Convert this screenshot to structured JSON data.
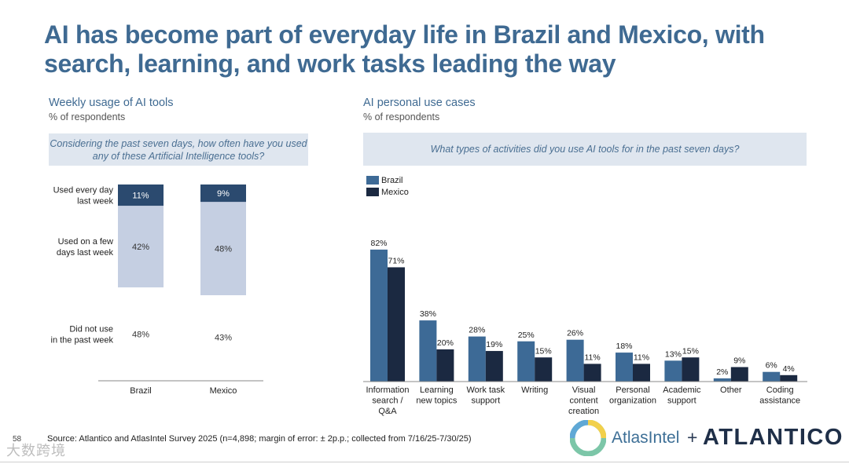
{
  "title": "AI has become part of everyday life in Brazil and Mexico, with search, learning, and work tasks leading the way",
  "left": {
    "title": "Weekly usage of AI tools",
    "subtitle": "% of respondents",
    "question": "Considering the past seven days, how often have you used any of these Artificial Intelligence tools?"
  },
  "right": {
    "title": "AI personal use cases",
    "subtitle": "% of respondents",
    "question": "What types of activities did you use AI tools for in the past seven days?"
  },
  "chart_data": [
    {
      "type": "bar",
      "stacked": true,
      "title": "Weekly usage of AI tools",
      "categories": [
        "Brazil",
        "Mexico"
      ],
      "series": [
        {
          "name": "Used every day last week",
          "values": [
            11,
            9
          ],
          "color": "#2b4a6f"
        },
        {
          "name": "Used on a few days last week",
          "values": [
            42,
            48
          ],
          "color": "#c5cfe2"
        },
        {
          "name": "Did not use in the past week",
          "values": [
            48,
            43
          ],
          "color": "#ffffff"
        }
      ],
      "series_label_lines": [
        [
          "Used every day",
          "last week"
        ],
        [
          "Used on a few",
          "days last week"
        ],
        [
          "Did not use",
          "in the past week"
        ]
      ],
      "ylim": [
        0,
        101
      ]
    },
    {
      "type": "bar",
      "title": "AI personal use cases",
      "categories": [
        "Information search / Q&A",
        "Learning new topics",
        "Work task support",
        "Writing",
        "Visual content creation",
        "Personal organization",
        "Academic support",
        "Other",
        "Coding assistance"
      ],
      "category_label_lines": [
        [
          "Information",
          "search /",
          "Q&A"
        ],
        [
          "Learning",
          "new topics"
        ],
        [
          "Work task",
          "support"
        ],
        [
          "Writing"
        ],
        [
          "Visual",
          "content",
          "creation"
        ],
        [
          "Personal",
          "organization"
        ],
        [
          "Academic",
          "support"
        ],
        [
          "Other"
        ],
        [
          "Coding",
          "assistance"
        ]
      ],
      "series": [
        {
          "name": "Brazil",
          "values": [
            82,
            38,
            28,
            25,
            26,
            18,
            13,
            2,
            6
          ],
          "color": "#3d6a96"
        },
        {
          "name": "Mexico",
          "values": [
            71,
            20,
            19,
            15,
            11,
            11,
            15,
            9,
            4
          ],
          "color": "#1b2941"
        }
      ],
      "ylim": [
        0,
        100
      ]
    }
  ],
  "footer": {
    "source": "Source: Atlantico and AtlasIntel Survey 2025 (n=4,898; margin of error: ± 2p.p.; collected from 7/16/25-7/30/25)",
    "page": "58",
    "watermark": "大数跨境",
    "logo_atlas": "AtlasIntel",
    "logo_plus": "+",
    "logo_atlantico": "ATLANTICO"
  }
}
